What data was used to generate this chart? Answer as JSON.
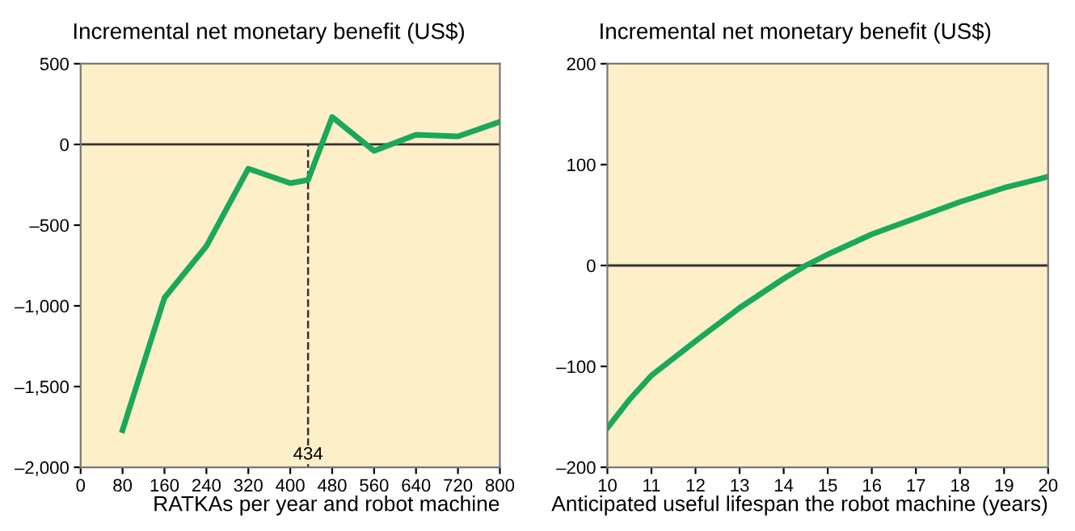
{
  "chart_data": [
    {
      "type": "line",
      "ylabel": "Incremental net monetary benefit (US$)",
      "xlabel": "RATKAs per year and robot machine",
      "x": [
        80,
        160,
        240,
        320,
        400,
        434,
        480,
        560,
        640,
        720,
        800
      ],
      "series": [
        {
          "color": "#1aa85a",
          "values": [
            -1770,
            -950,
            -630,
            -150,
            -240,
            -220,
            170,
            -40,
            60,
            50,
            140
          ]
        }
      ],
      "xlim": [
        0,
        800
      ],
      "xticks": [
        0,
        80,
        160,
        240,
        320,
        400,
        480,
        560,
        640,
        720,
        800
      ],
      "ylim": [
        -2000,
        500
      ],
      "yticks": [
        {
          "value": -2000,
          "label": "–2,000"
        },
        {
          "value": -1500,
          "label": "–1,500"
        },
        {
          "value": -1000,
          "label": "–1,000"
        },
        {
          "value": -500,
          "label": "–500"
        },
        0,
        500
      ],
      "ref_lines": [
        {
          "axis": "y",
          "value": 0,
          "color": "#333333",
          "line_style": "solid"
        },
        {
          "axis": "x",
          "value": 434,
          "label": "434",
          "color": "#333333",
          "line_style": "dashed"
        }
      ],
      "grid": false,
      "marker": "none",
      "line_style": "solid"
    },
    {
      "type": "line",
      "ylabel": "Incremental net monetary benefit (US$)",
      "xlabel": "Anticipated useful lifespan the robot machine (years)",
      "x": [
        10,
        10.5,
        11,
        12,
        13,
        14,
        14.5,
        15,
        16,
        17,
        18,
        19,
        20
      ],
      "series": [
        {
          "color": "#1aa85a",
          "values": [
            -161,
            -133,
            -109,
            -75,
            -42,
            -13,
            0,
            11,
            31,
            47,
            63,
            77,
            88
          ]
        }
      ],
      "xlim": [
        10,
        20
      ],
      "xticks": [
        10,
        11,
        12,
        13,
        14,
        15,
        16,
        17,
        18,
        19,
        20
      ],
      "ylim": [
        -200,
        200
      ],
      "yticks": [
        {
          "value": -200,
          "label": "–200"
        },
        {
          "value": -100,
          "label": "–100"
        },
        0,
        100,
        200
      ],
      "ref_lines": [
        {
          "axis": "y",
          "value": 0,
          "color": "#333333",
          "line_style": "solid"
        }
      ],
      "grid": false,
      "marker": "none",
      "line_style": "solid"
    }
  ]
}
